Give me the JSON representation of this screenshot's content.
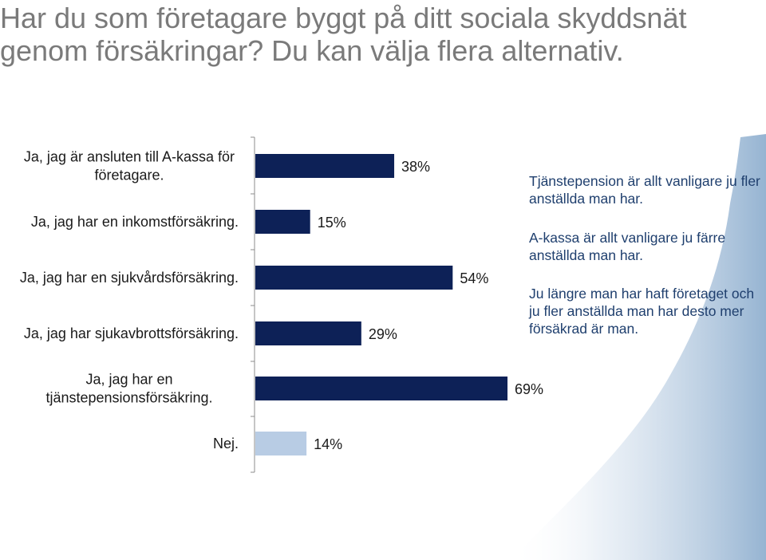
{
  "title": "Har du som företagare byggt på ditt sociala skyddsnät genom försäkringar? Du kan välja flera alternativ.",
  "notes": [
    "Tjänstepension är allt vanligare ju fler anställda man har.",
    "A-kassa är allt vanligare ju färre anställda man har.",
    "Ju längre man har haft företaget och ju fler anställda man har desto mer försäkrad är man."
  ],
  "colors": {
    "bar_primary": "#0d2157",
    "bar_highlight": "#b8cce4",
    "panel": "#96b4d2",
    "title": "#7a7a7a",
    "note_text": "#1f3f6e",
    "label_text": "#1a1a1a"
  },
  "chart_data": {
    "type": "bar",
    "orientation": "horizontal",
    "unit": "%",
    "xlim": [
      0,
      100
    ],
    "categories": [
      [
        "Ja, jag är ansluten till A-kassa för",
        "företagare."
      ],
      [
        "Ja, jag har en inkomstförsäkring."
      ],
      [
        "Ja, jag har en sjukvårdsförsäkring."
      ],
      [
        "Ja, jag har sjukavbrottsförsäkring."
      ],
      [
        "Ja, jag har en",
        "tjänstepensionsförsäkring."
      ],
      [
        "Nej."
      ]
    ],
    "values": [
      38,
      15,
      54,
      29,
      69,
      14
    ],
    "value_labels": [
      "38%",
      "15%",
      "54%",
      "29%",
      "69%",
      "14%"
    ],
    "highlight": [
      false,
      false,
      false,
      false,
      false,
      true
    ]
  }
}
